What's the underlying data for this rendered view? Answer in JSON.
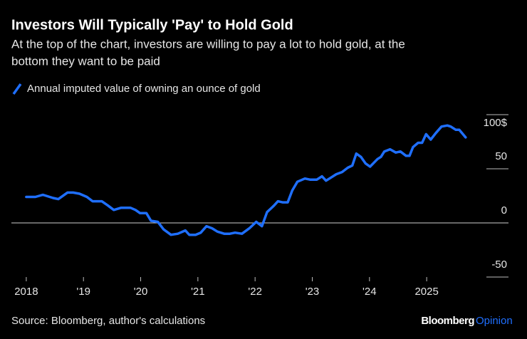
{
  "chart_data": {
    "type": "line",
    "title": "Investors Will Typically 'Pay' to Hold Gold",
    "subtitle": [
      "At the top of the chart, investors are willing to pay a lot to hold gold, at the",
      "bottom they want to be paid"
    ],
    "source": "Source: Bloomberg, author's calculations",
    "credit": "Bloomberg",
    "credit_suffix": "Opinion",
    "legend": "top-left",
    "x": [
      2018.0,
      2018.16,
      2018.29,
      2018.47,
      2018.56,
      2018.72,
      2018.82,
      2018.93,
      2019.06,
      2019.16,
      2019.32,
      2019.43,
      2019.53,
      2019.66,
      2019.82,
      2019.91,
      2019.99,
      2020.1,
      2020.18,
      2020.3,
      2020.4,
      2020.53,
      2020.65,
      2020.78,
      2020.85,
      2020.96,
      2021.05,
      2021.15,
      2021.25,
      2021.34,
      2021.46,
      2021.56,
      2021.65,
      2021.77,
      2021.9,
      2022.02,
      2022.12,
      2022.21,
      2022.33,
      2022.4,
      2022.48,
      2022.57,
      2022.65,
      2022.74,
      2022.87,
      2022.96,
      2023.08,
      2023.17,
      2023.24,
      2023.33,
      2023.42,
      2023.52,
      2023.62,
      2023.7,
      2023.77,
      2023.85,
      2023.93,
      2024.01,
      2024.14,
      2024.2,
      2024.26,
      2024.36,
      2024.46,
      2024.54,
      2024.64,
      2024.7,
      2024.76,
      2024.85,
      2024.92,
      2024.99,
      2025.07,
      2025.16,
      2025.26,
      2025.36,
      2025.42,
      2025.51,
      2025.57,
      2025.68
    ],
    "series": [
      {
        "name": "Annual imputed value of owning an ounce of gold",
        "color": "#1f6fff",
        "values": [
          24,
          24,
          26,
          23,
          22,
          28,
          28,
          27,
          24,
          20,
          20,
          16,
          12,
          14,
          14,
          12,
          9,
          9,
          2,
          1,
          -6,
          -11,
          -10,
          -7,
          -11,
          -11,
          -9,
          -3,
          -5,
          -8,
          -10,
          -10,
          -9,
          -10,
          -5,
          1,
          -3,
          10,
          16,
          20,
          19,
          19,
          30,
          38,
          41,
          40,
          40,
          43,
          39,
          42,
          45,
          47,
          51,
          53,
          64,
          61,
          55,
          52,
          59,
          61,
          66,
          68,
          65,
          66,
          62,
          62,
          70,
          74,
          74,
          82,
          77,
          83,
          89,
          90,
          89,
          86,
          86,
          79
        ]
      }
    ],
    "xlim": [
      2017.74,
      2026.43
    ],
    "xticks": [
      2018,
      {
        "value": 2019,
        "label": "'19"
      },
      {
        "value": 2020,
        "label": "'20"
      },
      {
        "value": 2021,
        "label": "'21"
      },
      {
        "value": 2022,
        "label": "'22"
      },
      {
        "value": 2023,
        "label": "'23"
      },
      {
        "value": 2024,
        "label": "'24"
      },
      2025
    ],
    "ylim": [
      -50,
      100
    ],
    "yticks": [
      {
        "value": 100,
        "label": "100$"
      },
      50,
      0,
      -50
    ]
  }
}
